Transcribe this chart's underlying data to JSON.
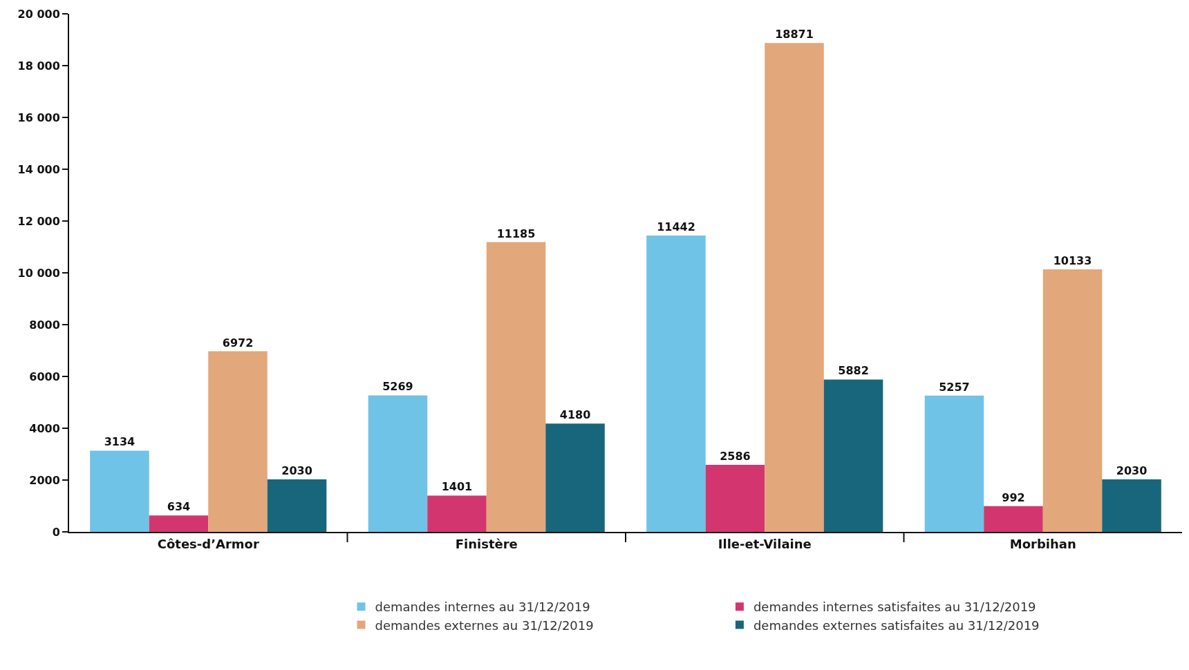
{
  "chart_data": {
    "type": "bar",
    "categories": [
      "Côtes-d’Armor",
      "Finistère",
      "Ille-et-Vilaine",
      "Morbihan"
    ],
    "series": [
      {
        "name": "demandes internes au 31/12/2019",
        "color": "#6fc3e6",
        "values": [
          3134,
          5269,
          11442,
          5257
        ]
      },
      {
        "name": "demandes internes satisfaites au 31/12/2019",
        "color": "#d3366f",
        "values": [
          634,
          1401,
          2586,
          992
        ]
      },
      {
        "name": "demandes externes au 31/12/2019",
        "color": "#e2a77a",
        "values": [
          6972,
          11185,
          18871,
          10133
        ]
      },
      {
        "name": "demandes externes satisfaites au 31/12/2019",
        "color": "#18667c",
        "values": [
          2030,
          4180,
          5882,
          2030
        ]
      }
    ],
    "ylim": [
      0,
      20000
    ],
    "yticks": [
      0,
      2000,
      4000,
      6000,
      8000,
      {
        "value": 10000,
        "label": "10 000"
      },
      {
        "value": 12000,
        "label": "12 000"
      },
      {
        "value": 14000,
        "label": "14 000"
      },
      {
        "value": 16000,
        "label": "16 000"
      },
      {
        "value": 18000,
        "label": "18 000"
      },
      {
        "value": 20000,
        "label": "20 000"
      }
    ],
    "legend": "bottom",
    "data_labels": true
  }
}
